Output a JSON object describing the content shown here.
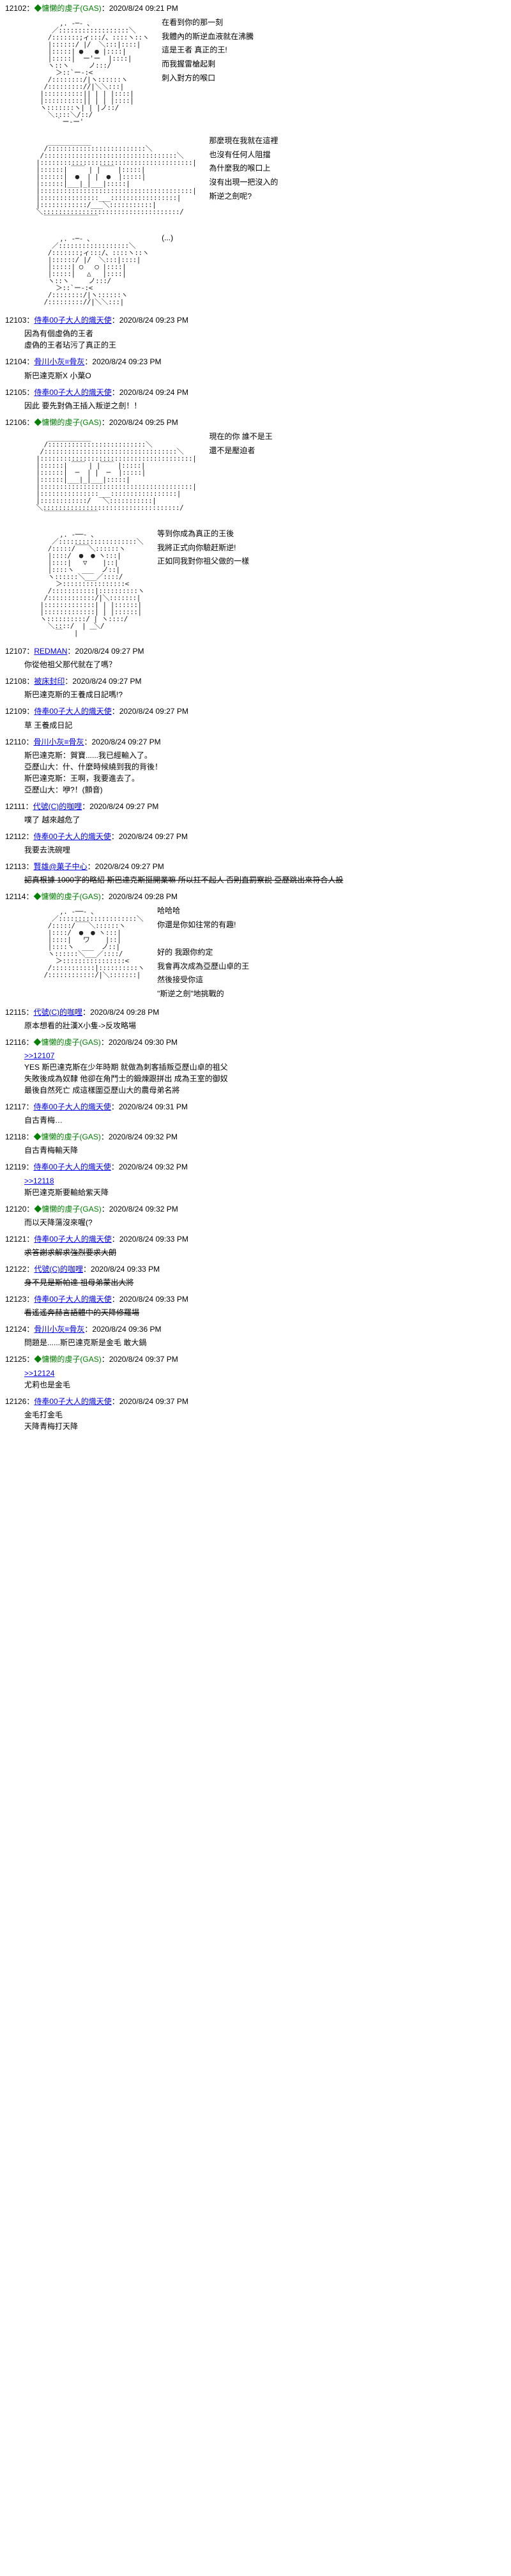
{
  "posts": [
    {
      "id": "12102",
      "author": "◆慵懒的虔子(GAS)",
      "authorColor": "#008000",
      "timestamp": "2020/8/24 09:21 PM",
      "ascii": "         ,. -─- 、\n       ／::::::::::::::::::＼\n      /:::::::;ィ:::/、::::ヽ::ヽ\n      |::::::/ |/  ＼:::|::::|\n      |:::::| ●   ● |::::|\n      |:::::|  ー'ー  |::::|\n      ヽ::ヽ     ノ:::/\n        ＞::`ー-:<\n      /::::::::/|ヽ::::::ヽ\n     /::::::::://|＼＼:::|\n    |::::::::::|| | | |::::|\n    |::::::::::|| | | |::::|\n    ヽ:::::::ヽ| | |ノ::/\n      ＼::::＼/::/\n        ｀ー-ー'",
      "sideText": "在看到你的那一刻\n我體內的斯逆血液就在沸騰\n這是王者 真正的王!\n而我握雷槍起剩\n刺入對方的喉口",
      "hasAscii": true
    },
    {
      "id": "",
      "ascii": "      ___________\n     /:::::::::::::::::::::::::＼\n    /::::::::::::::::::::::::::::::::::＼\n   |:::::::::::::::::::::::::::::::::::::::|\n   |::::::| ￣￣ | |￣￣ |:::::|\n   |::::::|  ●  | |  ●  |:::::|\n   |::::::|___|_|___|:::::|\n   |:::::::::::::::::::::::::::::::::::::::|\n   |:::::::::::::::___:::::::::::::::::|\n   |::::::::::::/___＼:::::::::::|\n   ＼:::::::::::::::::::::::::::::::::::/\n     ￣￣￣￣￣￣￣￣",
      "sideText": "那麼現在我就在這裡\n也沒有任何人阻擋\n為什麼我的喉口上\n沒有出現一把沒入的\n斯逆之劍呢?",
      "hasAscii": true,
      "continuation": true
    },
    {
      "id": "",
      "ascii": "         ,. -─- 、\n       ／::::::::::::::::::＼\n      /:::::::;ィ:::/、::::ヽ::ヽ\n      |::::::/ |/  ＼:::|::::|\n      |:::::| ○   ○ |::::|\n      |:::::|   △   |::::|\n      ヽ::ヽ     ノ:::/\n        ＞::`ー-:<\n      /::::::::/|ヽ::::::ヽ\n     /::::::::://|＼＼:::|",
      "sideText": "(...)",
      "hasAscii": true,
      "continuation": true,
      "sideTextRight": true
    },
    {
      "id": "12103",
      "author": "侍奉00子大人的熾天使",
      "authorColor": "#0000ee",
      "timestamp": "2020/8/24 09:23 PM",
      "text": "因為有個虛偽的王者\n虛偽的王者玷污了真正的王"
    },
    {
      "id": "12104",
      "author": "骨川小灰≡骨灰",
      "authorColor": "#0000ee",
      "timestamp": "2020/8/24 09:23 PM",
      "text": "斯巴達克斯X 小葉O"
    },
    {
      "id": "12105",
      "author": "侍奉00子大人的熾天使",
      "authorColor": "#0000ee",
      "timestamp": "2020/8/24 09:24 PM",
      "text": "因此 要先對偽王插入叛逆之劍！！"
    },
    {
      "id": "12106",
      "author": "◆慵懒的虔子(GAS)",
      "authorColor": "#008000",
      "timestamp": "2020/8/24 09:25 PM",
      "ascii": "      ___________\n     /:::::::::::::::::::::::::＼\n    /::::::::::::::::::::::::::::::::::＼\n   |:::::::::::::::::::::::::::::::::::::::|\n   |::::::| ￣￣ | |￣￣ |:::::|\n   |::::::|  ─  | |  ─  |:::::|\n   |::::::|___|_|___|:::::|\n   |:::::::::::::::::::::::::::::::::::::::|\n   |:::::::::::::::___:::::::::::::::::|\n   |::::::::::::/   ＼:::::::::::|\n   ＼:::::::::::::::::::::::::::::::::::/\n     ￣￣￣￣￣￣￣￣",
      "sideText": "現在的你 誰不是王\n還不是壓迫者",
      "hasAscii": true
    },
    {
      "id": "",
      "ascii": "         ,. -──- 、\n       ／::::::::::::::::::::＼\n      /:::::/￣￣＼::::::ヽ\n      |::::/  ●  ● ヽ:::|\n      |::::|   ▽    |::|\n      |::::ヽ  ___  ノ::|\n      ヽ::::::＼___／::::/\n        ＞::::::::::::::::<\n      /:::::::::::|::::::::::ヽ\n     /::::::::::::/|＼:::::::|\n    |:::::::::::::| | |::::::|\n    |:::::::::::::| | |::::::|\n    ヽ::::::::::/ | ヽ::::/\n      ＼::::/  |  ＼/\n        ￣   |   ￣",
      "sideText": "等到你成為真正的王後\n我將正式向你驗赶斯逆!\n正如同我對你祖父做的一樣",
      "hasAscii": true,
      "continuation": true
    },
    {
      "id": "12107",
      "author": "REDMAN",
      "authorColor": "#0000ee",
      "timestamp": "2020/8/24 09:27 PM",
      "text": "你從他祖父那代就在了嗎？"
    },
    {
      "id": "12108",
      "author": "被床封印",
      "authorColor": "#0000ee",
      "timestamp": "2020/8/24 09:27 PM",
      "text": "斯巴達克斯的王養成日記嗎!?"
    },
    {
      "id": "12109",
      "author": "侍奉00子大人的熾天使",
      "authorColor": "#0000ee",
      "timestamp": "2020/8/24 09:27 PM",
      "text": "草 王養成日記"
    },
    {
      "id": "12110",
      "author": "骨川小灰≡骨灰",
      "authorColor": "#0000ee",
      "timestamp": "2020/8/24 09:27 PM",
      "text": "斯巴達克斯：賀寶......我已經輸入了。\n亞歷山大：什、什麼時候繞到我的背後！\n斯巴達克斯：王啊，我要進去了。\n亞歷山大：咿?！(顫音)"
    },
    {
      "id": "12111",
      "author": "代號(C)的咖哩",
      "authorColor": "#0000ee",
      "timestamp": "2020/8/24 09:27 PM",
      "text": "噗了 越來越危了"
    },
    {
      "id": "12112",
      "author": "侍奉00子大人的熾天使",
      "authorColor": "#0000ee",
      "timestamp": "2020/8/24 09:27 PM",
      "text": "我要去洗碗哩"
    },
    {
      "id": "12113",
      "author": "賢雄@菓子中心",
      "authorColor": "#0000ee",
      "timestamp": "2020/8/24 09:27 PM",
      "text": "認真根據 1000字的略紹 斯巴達克斯挺開業嘛 所以扛不起人 否則直罰察說 亞歷跳出來符合人設",
      "strikethrough": true
    },
    {
      "id": "12114",
      "author": "◆慵懒的虔子(GAS)",
      "authorColor": "#008000",
      "timestamp": "2020/8/24 09:28 PM",
      "ascii": "         ,. -──- 、\n       ／::::::::::::::::::::＼\n      /:::::/￣￣＼::::::ヽ\n      |::::/  ●  ● ヽ:::|\n      |::::|   ワ    |::|\n      |::::ヽ  ___  ノ::|\n      ヽ::::::＼___／::::/\n        ＞::::::::::::::::<\n      /:::::::::::|::::::::::ヽ\n     /::::::::::::/|＼:::::::|",
      "sideText": "哈哈哈\n你還是你如往常的有趣!\n\n好的 我跟你約定\n我會再次成為亞歷山卓的王\n然後接受你這\n\"斯逆之劍\"地挑戰的",
      "hasAscii": true
    },
    {
      "id": "12115",
      "author": "代號(C)的咖哩",
      "authorColor": "#0000ee",
      "timestamp": "2020/8/24 09:28 PM",
      "text": "原本想看的壯漢X小隻->反攻略場"
    },
    {
      "id": "12116",
      "author": "◆慵懒的虔子(GAS)",
      "authorColor": "#008000",
      "timestamp": "2020/8/24 09:30 PM",
      "text": ">>12107\nYES 斯巴達克斯在少年時期 就做為刺客插叛亞歷山卓的祖父\n失敗後成為奴隸 他卻在角鬥士的鍛煉跟拼出 成為王室的御奴\n最後自然死亡 成這樣圍亞歷山大的農母弟名將"
    },
    {
      "id": "12117",
      "author": "侍奉00子大人的熾天使",
      "authorColor": "#0000ee",
      "timestamp": "2020/8/24 09:31 PM",
      "text": "自古青梅…"
    },
    {
      "id": "12118",
      "author": "◆慵懒的虔子(GAS)",
      "authorColor": "#008000",
      "timestamp": "2020/8/24 09:32 PM",
      "text": "自古青梅輸天降"
    },
    {
      "id": "12119",
      "author": "侍奉00子大人的熾天使",
      "authorColor": "#0000ee",
      "timestamp": "2020/8/24 09:32 PM",
      "text": ">>12118\n斯巴達克斯要輸給紫天降"
    },
    {
      "id": "12120",
      "author": "◆慵懒的虔子(GAS)",
      "authorColor": "#008000",
      "timestamp": "2020/8/24 09:32 PM",
      "text": "而以天降蕩沒來喔(?"
    },
    {
      "id": "12121",
      "author": "侍奉00子大人的熾天使",
      "authorColor": "#0000ee",
      "timestamp": "2020/8/24 09:33 PM",
      "text": "求答謝求解求強烈要求大朗",
      "strikethrough": true
    },
    {
      "id": "12122",
      "author": "代號(C)的咖哩",
      "authorColor": "#0000ee",
      "timestamp": "2020/8/24 09:33 PM",
      "text": "身不見是斯帕達 祖母弟蒙出大將",
      "strikethrough": true
    },
    {
      "id": "12123",
      "author": "侍奉00子大人的熾天使",
      "authorColor": "#0000ee",
      "timestamp": "2020/8/24 09:33 PM",
      "text": "看遙遙奔赫言語體中的天降修羅場",
      "strikethrough": true
    },
    {
      "id": "12124",
      "author": "骨川小灰≡骨灰",
      "authorColor": "#0000ee",
      "timestamp": "2020/8/24 09:36 PM",
      "text": "問題是......斯巴達克斯是金毛 敢大鍋"
    },
    {
      "id": "12125",
      "author": "◆慵懒的虔子(GAS)",
      "authorColor": "#008000",
      "timestamp": "2020/8/24 09:37 PM",
      "text": ">>12124\n尤莉也是金毛"
    },
    {
      "id": "12126",
      "author": "侍奉00子大人的熾天使",
      "authorColor": "#0000ee",
      "timestamp": "2020/8/24 09:37 PM",
      "text": "金毛打金毛\n天降青梅打天降"
    }
  ]
}
